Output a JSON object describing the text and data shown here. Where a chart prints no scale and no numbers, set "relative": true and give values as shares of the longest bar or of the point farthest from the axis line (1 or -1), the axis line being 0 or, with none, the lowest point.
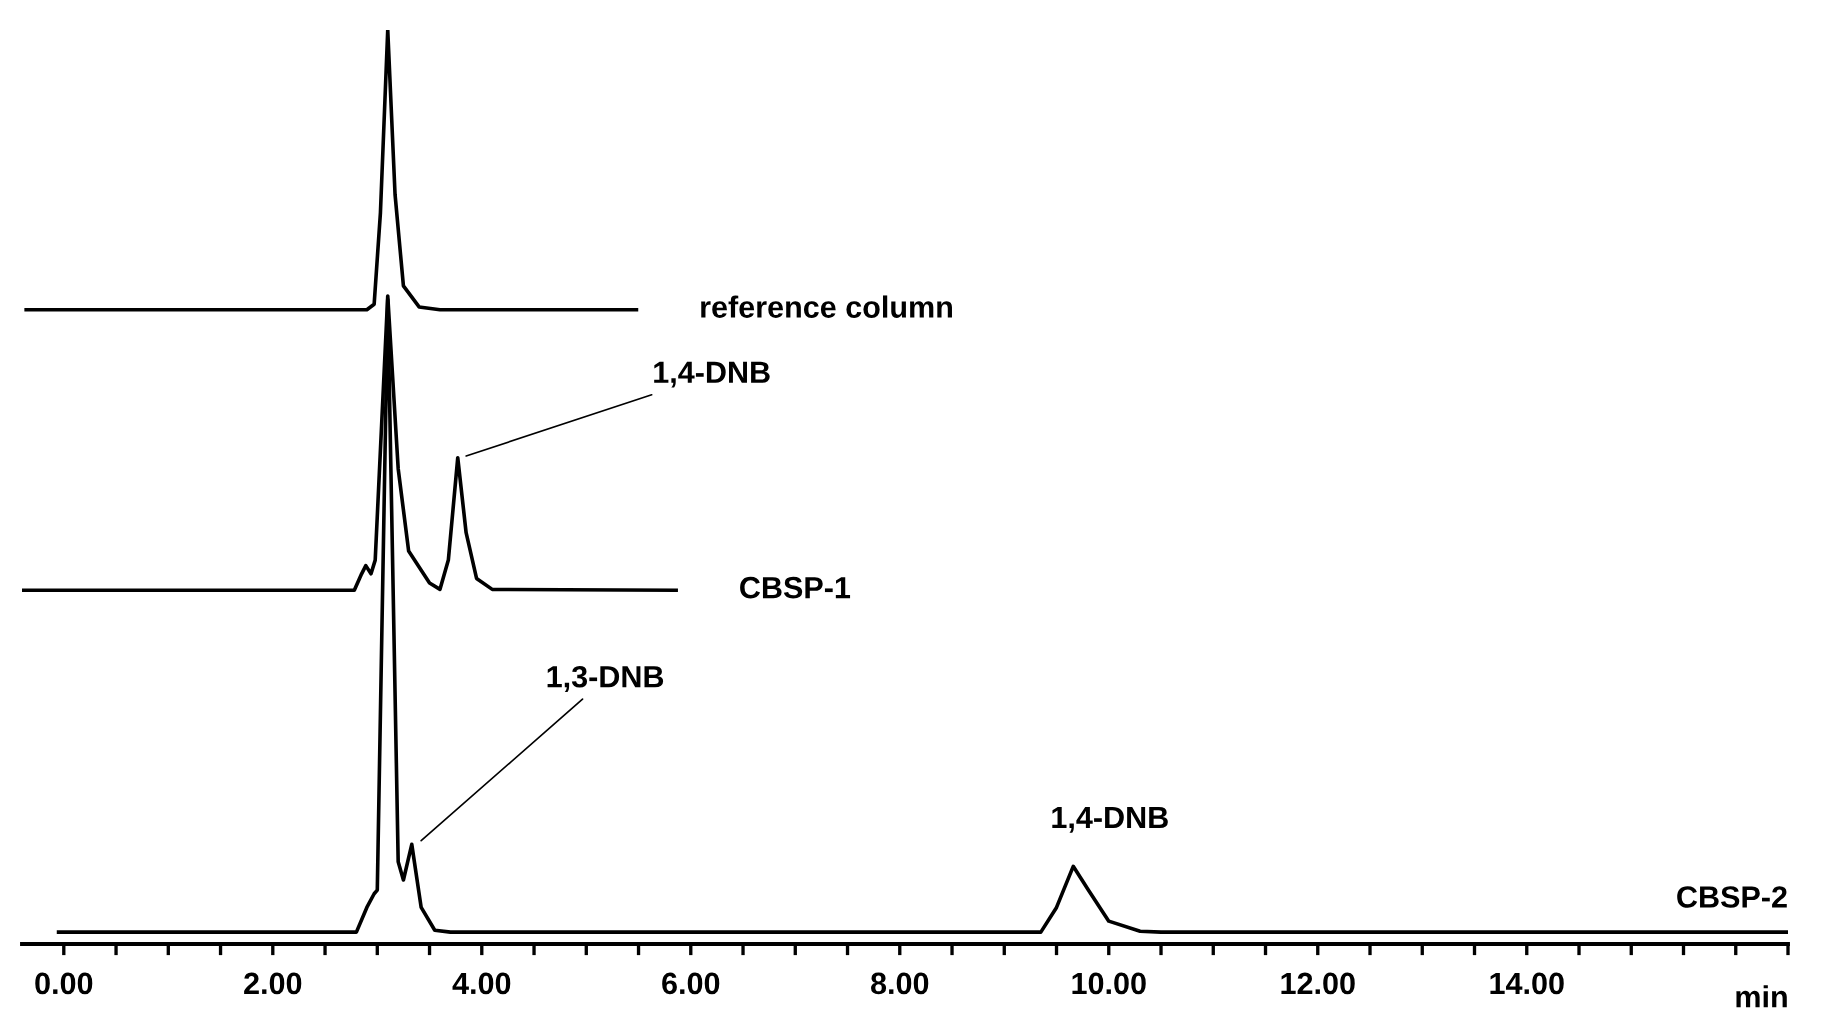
{
  "chart_data": {
    "type": "line",
    "relative": true,
    "xlabel": "min",
    "xlim": [
      -0.4,
      16.5
    ],
    "xticks": [
      {
        "value": 0,
        "label": "0.00"
      },
      {
        "value": 0.5,
        "label": null
      },
      {
        "value": 1,
        "label": null
      },
      {
        "value": 1.5,
        "label": null
      },
      {
        "value": 2,
        "label": "2.00"
      },
      {
        "value": 2.5,
        "label": null
      },
      {
        "value": 3,
        "label": null
      },
      {
        "value": 3.5,
        "label": null
      },
      {
        "value": 4,
        "label": "4.00"
      },
      {
        "value": 4.5,
        "label": null
      },
      {
        "value": 5,
        "label": null
      },
      {
        "value": 5.5,
        "label": null
      },
      {
        "value": 6,
        "label": "6.00"
      },
      {
        "value": 6.5,
        "label": null
      },
      {
        "value": 7,
        "label": null
      },
      {
        "value": 7.5,
        "label": null
      },
      {
        "value": 8,
        "label": "8.00"
      },
      {
        "value": 8.5,
        "label": null
      },
      {
        "value": 9,
        "label": null
      },
      {
        "value": 9.5,
        "label": null
      },
      {
        "value": 10,
        "label": "10.00"
      },
      {
        "value": 10.5,
        "label": null
      },
      {
        "value": 11,
        "label": null
      },
      {
        "value": 11.5,
        "label": null
      },
      {
        "value": 12,
        "label": "12.00"
      },
      {
        "value": 12.5,
        "label": null
      },
      {
        "value": 13,
        "label": null
      },
      {
        "value": 13.5,
        "label": null
      },
      {
        "value": 14,
        "label": "14.00"
      },
      {
        "value": 14.5,
        "label": null
      },
      {
        "value": 15,
        "label": null
      },
      {
        "value": 15.5,
        "label": null
      },
      {
        "value": 16,
        "label": null
      },
      {
        "value": 16.5,
        "label": null
      }
    ],
    "grid": false,
    "legend": false,
    "marker": "none",
    "line_style": "solid",
    "tick_labels": "x",
    "series": [
      {
        "name": "reference column",
        "color": "#000000",
        "x": [
          -0.36,
          2.9,
          2.97,
          3.03,
          3.1,
          3.17,
          3.25,
          3.4,
          3.6,
          5.48
        ],
        "values": [
          0.694,
          0.694,
          0.7,
          0.8,
          1.0,
          0.82,
          0.72,
          0.697,
          0.694,
          0.694
        ]
      },
      {
        "name": "CBSP-1",
        "color": "#000000",
        "x": [
          -0.4,
          2.78,
          2.85,
          2.89,
          2.94,
          2.98,
          3.1,
          3.2,
          3.3,
          3.5,
          3.6,
          3.68,
          3.77,
          3.85,
          3.95,
          4.1,
          5.86
        ],
        "values": [
          0.387,
          0.387,
          0.405,
          0.414,
          0.405,
          0.42,
          0.709,
          0.52,
          0.43,
          0.395,
          0.388,
          0.42,
          0.532,
          0.45,
          0.4,
          0.388,
          0.387
        ]
      },
      {
        "name": "CBSP-2",
        "color": "#000000",
        "x": [
          -0.05,
          2.8,
          2.9,
          2.97,
          3.0,
          3.1,
          3.2,
          3.25,
          3.33,
          3.42,
          3.55,
          3.7,
          9.35,
          9.5,
          9.66,
          9.8,
          10.0,
          10.3,
          10.5,
          16.5
        ],
        "values": [
          0.013,
          0.013,
          0.04,
          0.055,
          0.059,
          0.705,
          0.09,
          0.07,
          0.109,
          0.04,
          0.015,
          0.013,
          0.013,
          0.04,
          0.085,
          0.06,
          0.025,
          0.014,
          0.013,
          0.013
        ]
      }
    ],
    "annotations": [
      {
        "text": "1,4-DNB",
        "x": 3.8,
        "y": 0.532
      },
      {
        "text": "1,3-DNB",
        "x": 3.38,
        "y": 0.109
      },
      {
        "text": "1,4-DNB",
        "x": 9.66,
        "y": 0.085
      }
    ]
  }
}
